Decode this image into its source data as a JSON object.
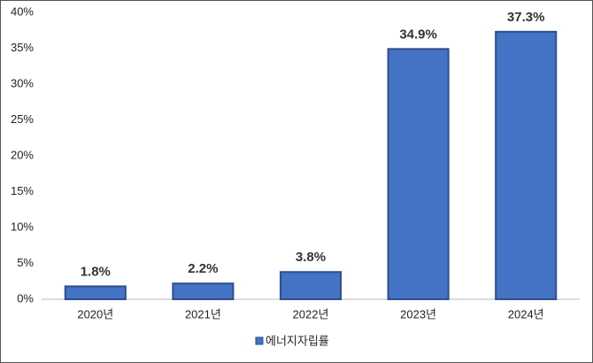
{
  "chart_data": {
    "type": "bar",
    "categories": [
      "2020년",
      "2021년",
      "2022년",
      "2023년",
      "2024년"
    ],
    "series": [
      {
        "name": "에너지자립률",
        "color": "#4472c4",
        "values": [
          1.8,
          2.2,
          3.8,
          34.9,
          37.3
        ],
        "value_labels": [
          "1.8%",
          "2.2%",
          "3.8%",
          "34.9%",
          "37.3%"
        ]
      }
    ],
    "ylim": [
      0,
      40
    ],
    "yticks": [
      {
        "value": 0,
        "label": "0%"
      },
      {
        "value": 5,
        "label": "5%"
      },
      {
        "value": 10,
        "label": "10%"
      },
      {
        "value": 15,
        "label": "15%"
      },
      {
        "value": 20,
        "label": "20%"
      },
      {
        "value": 25,
        "label": "25%"
      },
      {
        "value": 30,
        "label": "30%"
      },
      {
        "value": 35,
        "label": "35%"
      },
      {
        "value": 40,
        "label": "40%"
      }
    ],
    "grid": false,
    "legend": "bottom"
  }
}
